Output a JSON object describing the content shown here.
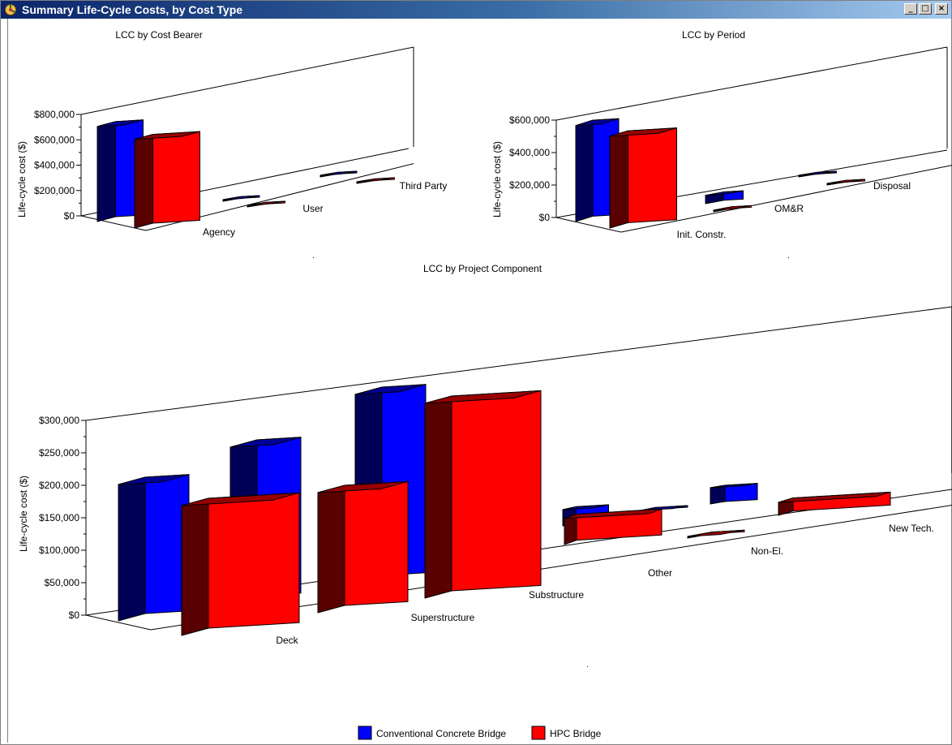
{
  "window": {
    "title": "Summary Life-Cycle Costs, by Cost Type",
    "minimize_glyph": "_",
    "maximize_glyph": "□",
    "close_glyph": "×"
  },
  "colors": {
    "conventional": "#0000ff",
    "hpc": "#ff0000",
    "titlebar_start": "#0a246a",
    "titlebar_end": "#a6caf0"
  },
  "legend": {
    "items": [
      {
        "label": "Conventional Concrete Bridge",
        "color": "#0000ff"
      },
      {
        "label": "HPC Bridge",
        "color": "#ff0000"
      }
    ]
  },
  "chart_data": [
    {
      "type": "bar",
      "title": "LCC by Cost Bearer",
      "ylabel": "Life-cycle cost ($)",
      "ylim": [
        0,
        800000
      ],
      "yticks": [
        "$0",
        "$200,000",
        "$400,000",
        "$600,000",
        "$800,000"
      ],
      "categories": [
        "Agency",
        "User",
        "Third Party"
      ],
      "series": [
        {
          "name": "Conventional Concrete Bridge",
          "values": [
            750000,
            5000,
            8000
          ]
        },
        {
          "name": "HPC Bridge",
          "values": [
            700000,
            4000,
            7000
          ]
        }
      ]
    },
    {
      "type": "bar",
      "title": "LCC by Period",
      "ylabel": "Life-cycle cost ($)",
      "ylim": [
        0,
        700000
      ],
      "yticks": [
        "$0",
        "$200,000",
        "$400,000",
        "$600,000"
      ],
      "categories": [
        "Init. Constr.",
        "OM&R",
        "Disposal"
      ],
      "series": [
        {
          "name": "Conventional Concrete Bridge",
          "values": [
            690000,
            60000,
            6000
          ]
        },
        {
          "name": "HPC Bridge",
          "values": [
            660000,
            10000,
            5000
          ]
        }
      ]
    },
    {
      "type": "bar",
      "title": "LCC by Project Component",
      "ylabel": "Life-cycle cost ($)",
      "ylim": [
        0,
        300000
      ],
      "yticks": [
        "$0",
        "$50,000",
        "$100,000",
        "$150,000",
        "$200,000",
        "$250,000",
        "$300,000"
      ],
      "categories": [
        "Deck",
        "Superstructure",
        "Substructure",
        "Other",
        "Non-El.",
        "New Tech."
      ],
      "series": [
        {
          "name": "Conventional Concrete Bridge",
          "values": [
            210000,
            240000,
            290000,
            25000,
            2000,
            25000
          ]
        },
        {
          "name": "HPC Bridge",
          "values": [
            200000,
            185000,
            300000,
            40000,
            2000,
            20000
          ]
        }
      ]
    }
  ]
}
